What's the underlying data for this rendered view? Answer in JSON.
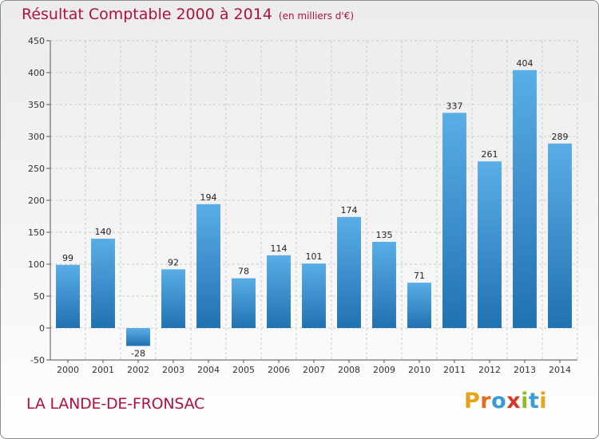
{
  "header": {
    "title": "Résultat Comptable 2000 à 2014",
    "subtitle": "(en milliers d'€)"
  },
  "footer": {
    "commune": "LA LANDE-DE-FRONSAC",
    "logo_text": "Proxiti"
  },
  "colors": {
    "accent": "#b0123d",
    "bar_light": "#5aaee6",
    "bar_dark": "#1f72b0",
    "logo_letters": [
      "#e8a21a",
      "#e06c1c",
      "#3a9bd6",
      "#d23a2a",
      "#8dbd2c",
      "#3a9bd6",
      "#e8a21a"
    ]
  },
  "chart_data": {
    "type": "bar",
    "categories": [
      "2000",
      "2001",
      "2002",
      "2003",
      "2004",
      "2005",
      "2006",
      "2007",
      "2008",
      "2009",
      "2010",
      "2011",
      "2012",
      "2013",
      "2014"
    ],
    "values": [
      99,
      140,
      -28,
      92,
      194,
      78,
      114,
      101,
      174,
      135,
      71,
      337,
      261,
      404,
      289
    ],
    "labels": [
      "99",
      "140",
      "-28",
      "92",
      "194",
      "78",
      "114",
      "101",
      "174",
      "135",
      "71",
      "337",
      "261",
      "404",
      "289"
    ],
    "ylim": [
      -50,
      450
    ],
    "yticks": [
      -50,
      0,
      50,
      100,
      150,
      200,
      250,
      300,
      350,
      400,
      450
    ],
    "grid": true
  }
}
